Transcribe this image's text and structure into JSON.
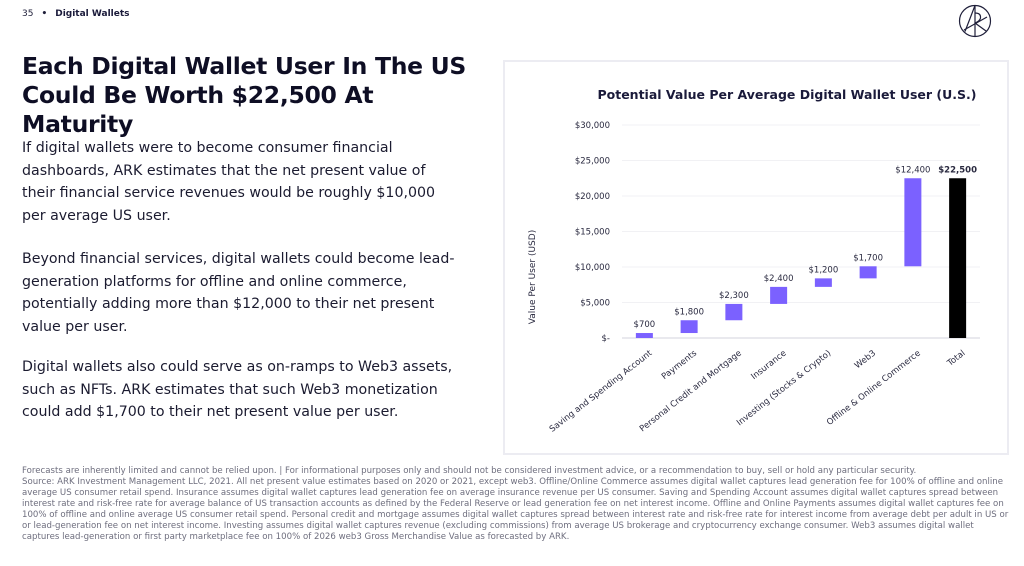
{
  "header": {
    "page_number": "35",
    "separator": "•",
    "section": "Digital Wallets"
  },
  "logo": {
    "icon": "ark-logo-icon",
    "label": "ARK"
  },
  "headline": "Each Digital Wallet User In The US Could Be Worth $22,500 At Maturity",
  "paragraphs": [
    "If digital wallets were to become consumer financial dashboards, ARK estimates that the net present value of their financial service revenues would be roughly $10,000 per average US user.",
    "Beyond financial services, digital wallets could become lead-generation platforms for offline and online commerce, potentially adding more than $12,000 to their net present value per user.",
    "Digital wallets also could serve as on-ramps to Web3 assets, such as NFTs. ARK estimates that such Web3 monetization could add $1,700 to their net present value per user."
  ],
  "chart_data": {
    "type": "bar",
    "subtype": "waterfall",
    "title": "Potential Value Per Average Digital Wallet User (U.S.)",
    "xlabel": "",
    "ylabel": "Value Per User (USD)",
    "ylim": [
      0,
      30000
    ],
    "yticks": [
      0,
      5000,
      10000,
      15000,
      20000,
      25000,
      30000
    ],
    "ytick_labels": [
      "$-",
      "$5,000",
      "$10,000",
      "$15,000",
      "$20,000",
      "$25,000",
      "$30,000"
    ],
    "grid": true,
    "categories": [
      "Saving and Spending Account",
      "Payments",
      "Personal Credit and Mortgage",
      "Insurance",
      "Investing (Stocks & Crypto)",
      "Web3",
      "Offline & Online Commerce",
      "Total"
    ],
    "values": [
      700,
      1800,
      2300,
      2400,
      1200,
      1700,
      12400,
      22500
    ],
    "data_labels": [
      "$700",
      "$1,800",
      "$2,300",
      "$2,400",
      "$1,200",
      "$1,700",
      "$12,400",
      "$22,500"
    ],
    "is_total": [
      false,
      false,
      false,
      false,
      false,
      false,
      false,
      true
    ],
    "colors": {
      "increment": "#7b61ff",
      "total": "#000000"
    }
  },
  "footnote": [
    "Forecasts are inherently limited and cannot be relied upon. | For informational purposes only and should not be considered investment advice, or a recommendation to buy, sell or hold any particular security.",
    "Source: ARK Investment Management LLC, 2021. All net present value estimates based on 2020 or 2021, except web3. Offline/Online Commerce assumes digital wallet captures lead generation fee for 100% of offline and online average US consumer retail spend. Insurance assumes digital wallet captures lead generation fee on average insurance revenue per US consumer. Saving and Spending Account assumes digital wallet captures spread between interest rate and risk-free rate for average balance of US transaction accounts as defined by the Federal Reserve or lead generation fee on net interest income. Offline and Online Payments assumes digital wallet captures fee on 100% of offline and online average US consumer retail spend. Personal credit and mortgage assumes digital wallet captures spread between interest rate and risk-free rate for interest income from average debt per adult in US or or lead-generation fee on net interest income. Investing assumes digital wallet captures revenue (excluding commissions) from average US brokerage and cryptocurrency exchange consumer. Web3 assumes digital wallet captures lead-generation or first party marketplace fee on 100% of 2026 web3 Gross Merchandise Value as forecasted by ARK."
  ]
}
